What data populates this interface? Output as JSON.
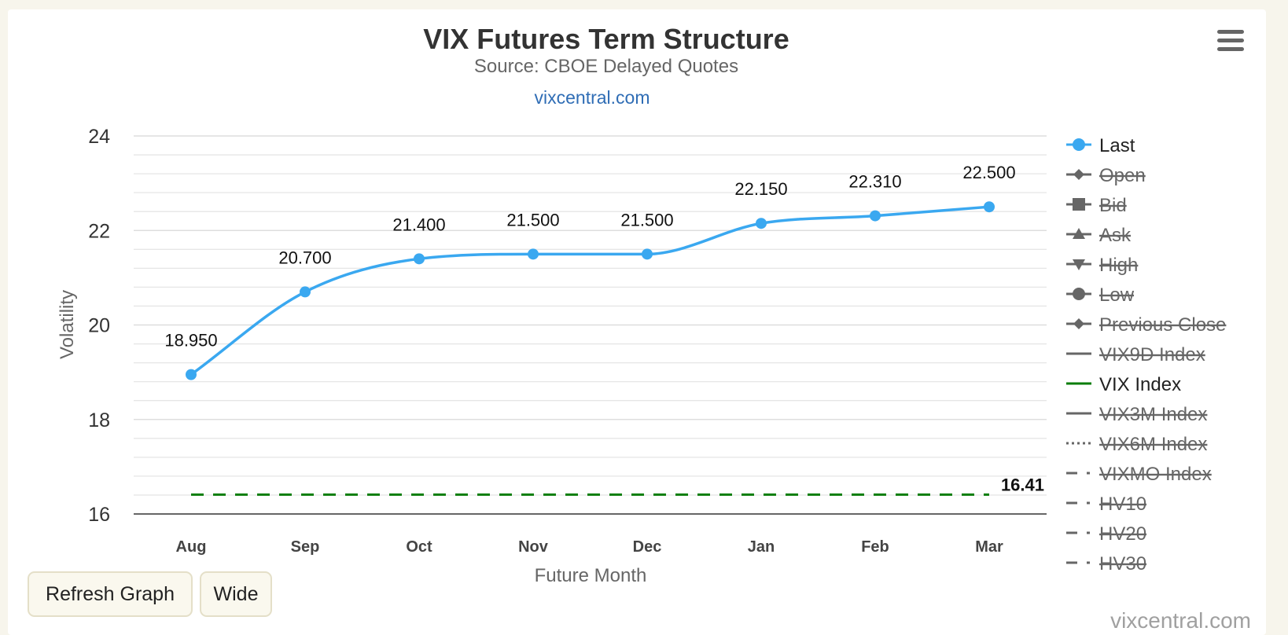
{
  "chart_data": {
    "type": "line",
    "title": "VIX Futures Term Structure",
    "subtitle": "Source: CBOE Delayed Quotes",
    "link_text": "vixcentral.com",
    "xlabel": "Future Month",
    "ylabel": "Volatility",
    "categories": [
      "Aug",
      "Sep",
      "Oct",
      "Nov",
      "Dec",
      "Jan",
      "Feb",
      "Mar"
    ],
    "ylim": [
      16,
      24
    ],
    "yticks": [
      16,
      18,
      20,
      22,
      24
    ],
    "minor_grid_step": 0.4,
    "grid": true,
    "legend_position": "right",
    "series": [
      {
        "name": "Last",
        "values": [
          18.95,
          20.7,
          21.4,
          21.5,
          21.5,
          22.15,
          22.31,
          22.5
        ],
        "labels": [
          "18.950",
          "20.700",
          "21.400",
          "21.500",
          "21.500",
          "22.150",
          "22.310",
          "22.500"
        ],
        "color": "#3aa8f0",
        "visible": true
      },
      {
        "name": "VIX Index",
        "values": [
          16.41,
          16.41,
          16.41,
          16.41,
          16.41,
          16.41,
          16.41,
          16.41
        ],
        "end_label": "16.41",
        "color": "#0a7d0a",
        "visible": true
      }
    ],
    "legend": [
      {
        "name": "Last",
        "symbol": "circle",
        "visible": true,
        "color": "#3aa8f0"
      },
      {
        "name": "Open",
        "symbol": "diamond",
        "visible": false
      },
      {
        "name": "Bid",
        "symbol": "square",
        "visible": false
      },
      {
        "name": "Ask",
        "symbol": "triangle",
        "visible": false
      },
      {
        "name": "High",
        "symbol": "triangle-down",
        "visible": false
      },
      {
        "name": "Low",
        "symbol": "circle",
        "visible": false
      },
      {
        "name": "Previous Close",
        "symbol": "diamond",
        "visible": false
      },
      {
        "name": "VIX9D Index",
        "symbol": "line",
        "visible": false
      },
      {
        "name": "VIX Index",
        "symbol": "line",
        "visible": true,
        "color": "#0a7d0a"
      },
      {
        "name": "VIX3M Index",
        "symbol": "line",
        "visible": false
      },
      {
        "name": "VIX6M Index",
        "symbol": "dotted",
        "visible": false
      },
      {
        "name": "VIXMO Index",
        "symbol": "dashdot",
        "visible": false
      },
      {
        "name": "HV10",
        "symbol": "dashdot",
        "visible": false
      },
      {
        "name": "HV20",
        "symbol": "dashdot",
        "visible": false
      },
      {
        "name": "HV30",
        "symbol": "dashdot",
        "visible": false
      }
    ]
  },
  "buttons": {
    "refresh": "Refresh Graph",
    "wide": "Wide"
  },
  "credits": "vixcentral.com",
  "menu_icon": "hamburger-menu-icon"
}
